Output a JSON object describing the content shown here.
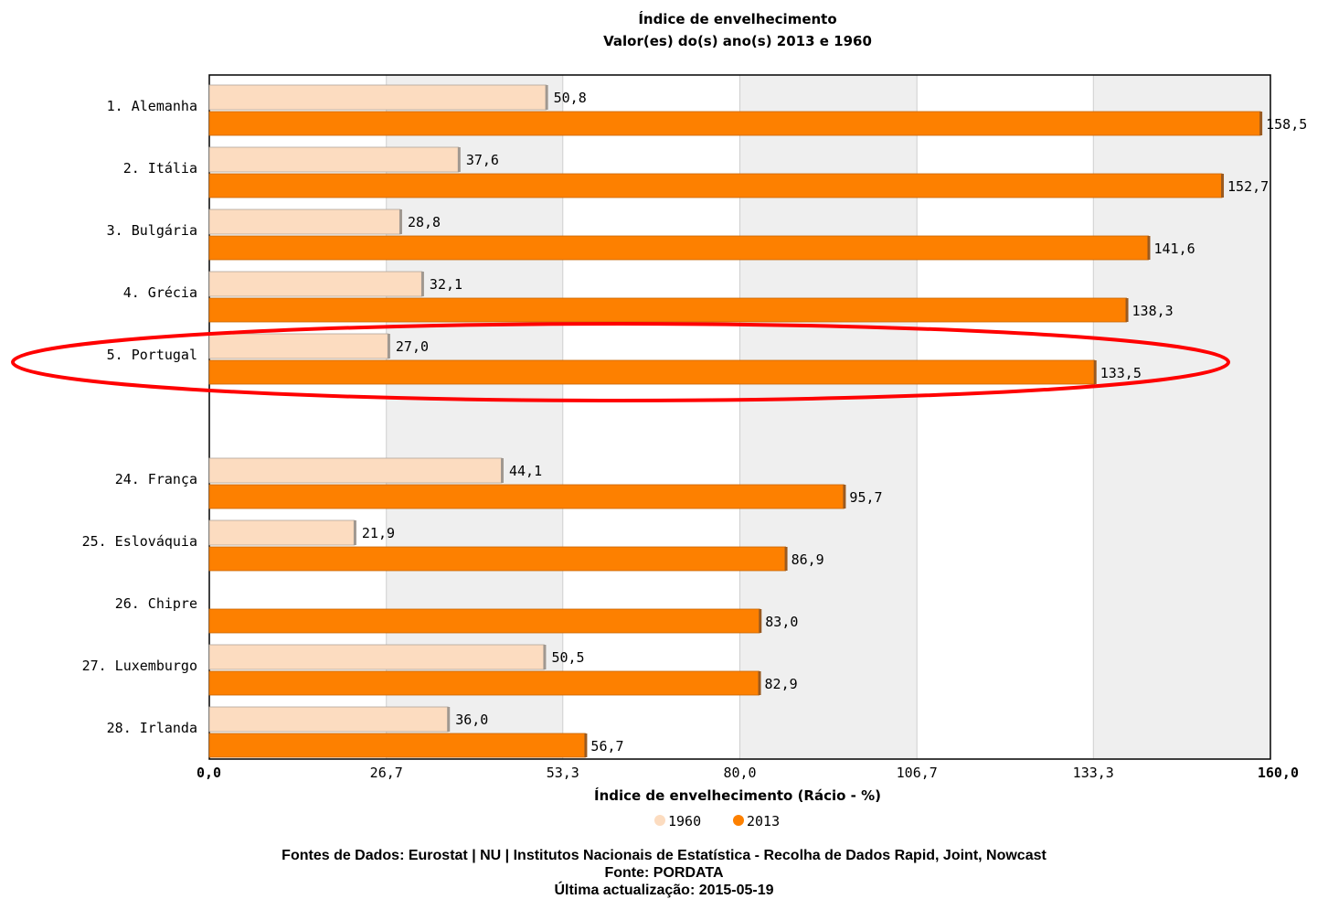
{
  "chart_data": {
    "type": "bar",
    "orientation": "horizontal",
    "title": "Índice de envelhecimento",
    "subtitle": "Valor(es) do(s) ano(s) 2013 e 1960",
    "xlabel": "Índice de envelhecimento (Rácio - %)",
    "xlim": [
      0,
      160
    ],
    "ticks": [
      "0,0",
      "26,7",
      "53,3",
      "80,0",
      "106,7",
      "133,3",
      "160,0"
    ],
    "tick_values": [
      0,
      26.7,
      53.3,
      80.0,
      106.7,
      133.3,
      160.0
    ],
    "categories": [
      "1. Alemanha",
      "2. Itália",
      "3. Bulgária",
      "4. Grécia",
      "5. Portugal",
      "24. França",
      "25. Eslováquia",
      "26. Chipre",
      "27. Luxemburgo",
      "28. Irlanda"
    ],
    "series": [
      {
        "name": "1960",
        "color": "#fcdcc0",
        "values": [
          50.8,
          37.6,
          28.8,
          32.1,
          27.0,
          44.1,
          21.9,
          null,
          50.5,
          36.0
        ],
        "labels": [
          "50,8",
          "37,6",
          "28,8",
          "32,1",
          "27,0",
          "44,1",
          "21,9",
          "",
          "50,5",
          "36,0"
        ]
      },
      {
        "name": "2013",
        "color": "#fd8000",
        "values": [
          158.5,
          152.7,
          141.6,
          138.3,
          133.5,
          95.7,
          86.9,
          83.0,
          82.9,
          56.7
        ],
        "labels": [
          "158,5",
          "152,7",
          "141,6",
          "138,3",
          "133,5",
          "95,7",
          "86,9",
          "83,0",
          "82,9",
          "56,7"
        ]
      }
    ],
    "grid": true,
    "highlight": {
      "category": "5. Portugal",
      "shape": "ellipse",
      "color": "#ff0000"
    },
    "legend": "bottom-center"
  },
  "footer": {
    "sources": "Fontes de Dados: Eurostat | NU | Institutos Nacionais de Estatística - Recolha de Dados Rapid, Joint, Nowcast",
    "source": "Fonte: PORDATA",
    "updated": "Última actualização: 2015-05-19"
  }
}
